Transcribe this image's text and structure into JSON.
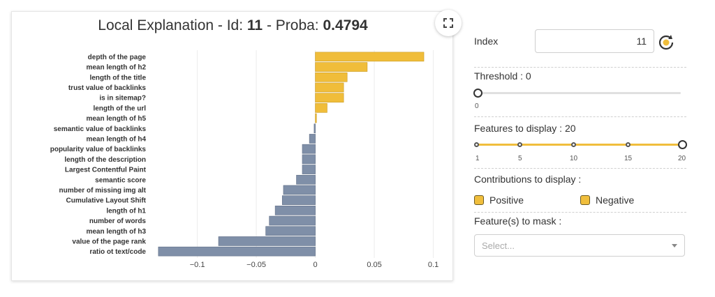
{
  "card": {
    "title_prefix": "Local Explanation - Id: ",
    "title_id": "11",
    "title_mid": " - Proba: ",
    "title_proba": "0.4794",
    "expand_icon": "expand-icon"
  },
  "chart_data": {
    "type": "bar",
    "orientation": "horizontal",
    "categories": [
      "depth of the page",
      "mean length of h2",
      "length of the title",
      "trust value of backlinks",
      "is in sitemap?",
      "length of the url",
      "mean length of h5",
      "semantic value of backlinks",
      "mean length of h4",
      "popularity value of backlinks",
      "length of the description",
      "Largest Contentful Paint",
      "semantic score",
      "number of missing img alt",
      "Cumulative Layout Shift",
      "length of h1",
      "number of words",
      "mean length of h3",
      "value of the page rank",
      "ratio ot text/code"
    ],
    "values": [
      0.092,
      0.044,
      0.027,
      0.024,
      0.024,
      0.01,
      0.001,
      -0.001,
      -0.005,
      -0.011,
      -0.011,
      -0.011,
      -0.016,
      -0.027,
      -0.028,
      -0.034,
      -0.039,
      -0.042,
      -0.082,
      -0.133
    ],
    "xlim": [
      -0.14,
      0.105
    ],
    "xticks": [
      -0.1,
      -0.05,
      0,
      0.05,
      0.1
    ],
    "xtick_labels": [
      "−0.1",
      "−0.05",
      "0",
      "0.05",
      "0.1"
    ],
    "colors": {
      "positive": "#f0bd3a",
      "negative": "#7f8fa8"
    },
    "grid": "vertical"
  },
  "panel": {
    "index_label": "Index",
    "index_value": "11",
    "refresh_icon": "refresh-icon",
    "threshold_label": "Threshold : 0",
    "threshold_min_label": "0",
    "threshold_value": 0,
    "features_label": "Features to display : 20",
    "features_ticks": [
      "1",
      "5",
      "10",
      "15",
      "20"
    ],
    "features_value": 20,
    "contributions_label": "Contributions to display :",
    "positive_label": "Positive",
    "negative_label": "Negative",
    "mask_label": "Feature(s) to mask :",
    "mask_placeholder": "Select...",
    "accent": "#f0be3c"
  }
}
